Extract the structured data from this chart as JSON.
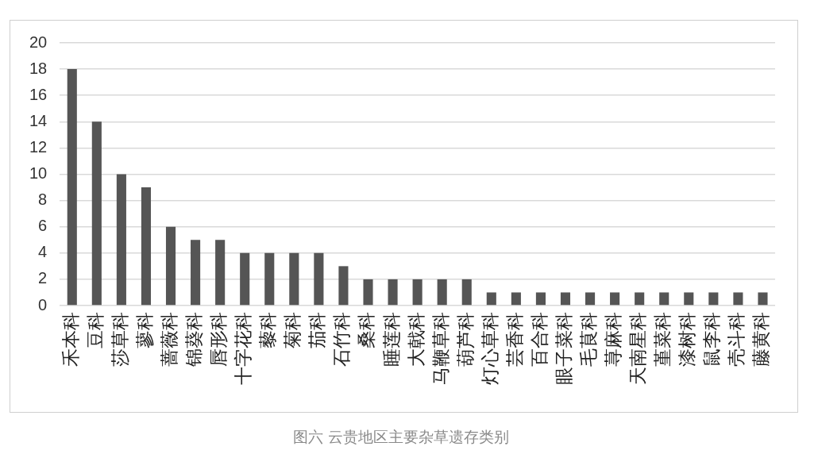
{
  "chart_data": {
    "type": "bar",
    "title": "图六 云贵地区主要杂草遗存类别",
    "categories": [
      "禾本科",
      "豆科",
      "莎草科",
      "蓼科",
      "蔷薇科",
      "锦葵科",
      "唇形科",
      "十字花科",
      "藜科",
      "菊科",
      "茄科",
      "石竹科",
      "桑科",
      "睡莲科",
      "大戟科",
      "马鞭草科",
      "葫芦科",
      "灯心草科",
      "芸香科",
      "百合科",
      "眼子菜科",
      "毛茛科",
      "荨麻科",
      "天南星科",
      "堇菜科",
      "漆树科",
      "鼠李科",
      "壳斗科",
      "藤黄科"
    ],
    "values": [
      18,
      14,
      10,
      9,
      6,
      5,
      5,
      4,
      4,
      4,
      4,
      3,
      2,
      2,
      2,
      2,
      2,
      1,
      1,
      1,
      1,
      1,
      1,
      1,
      1,
      1,
      1,
      1,
      1
    ],
    "color": "#555555",
    "ylim": [
      0,
      20
    ],
    "yticks": [
      0,
      2,
      4,
      6,
      8,
      10,
      12,
      14,
      16,
      18,
      20
    ],
    "grid": "y"
  }
}
